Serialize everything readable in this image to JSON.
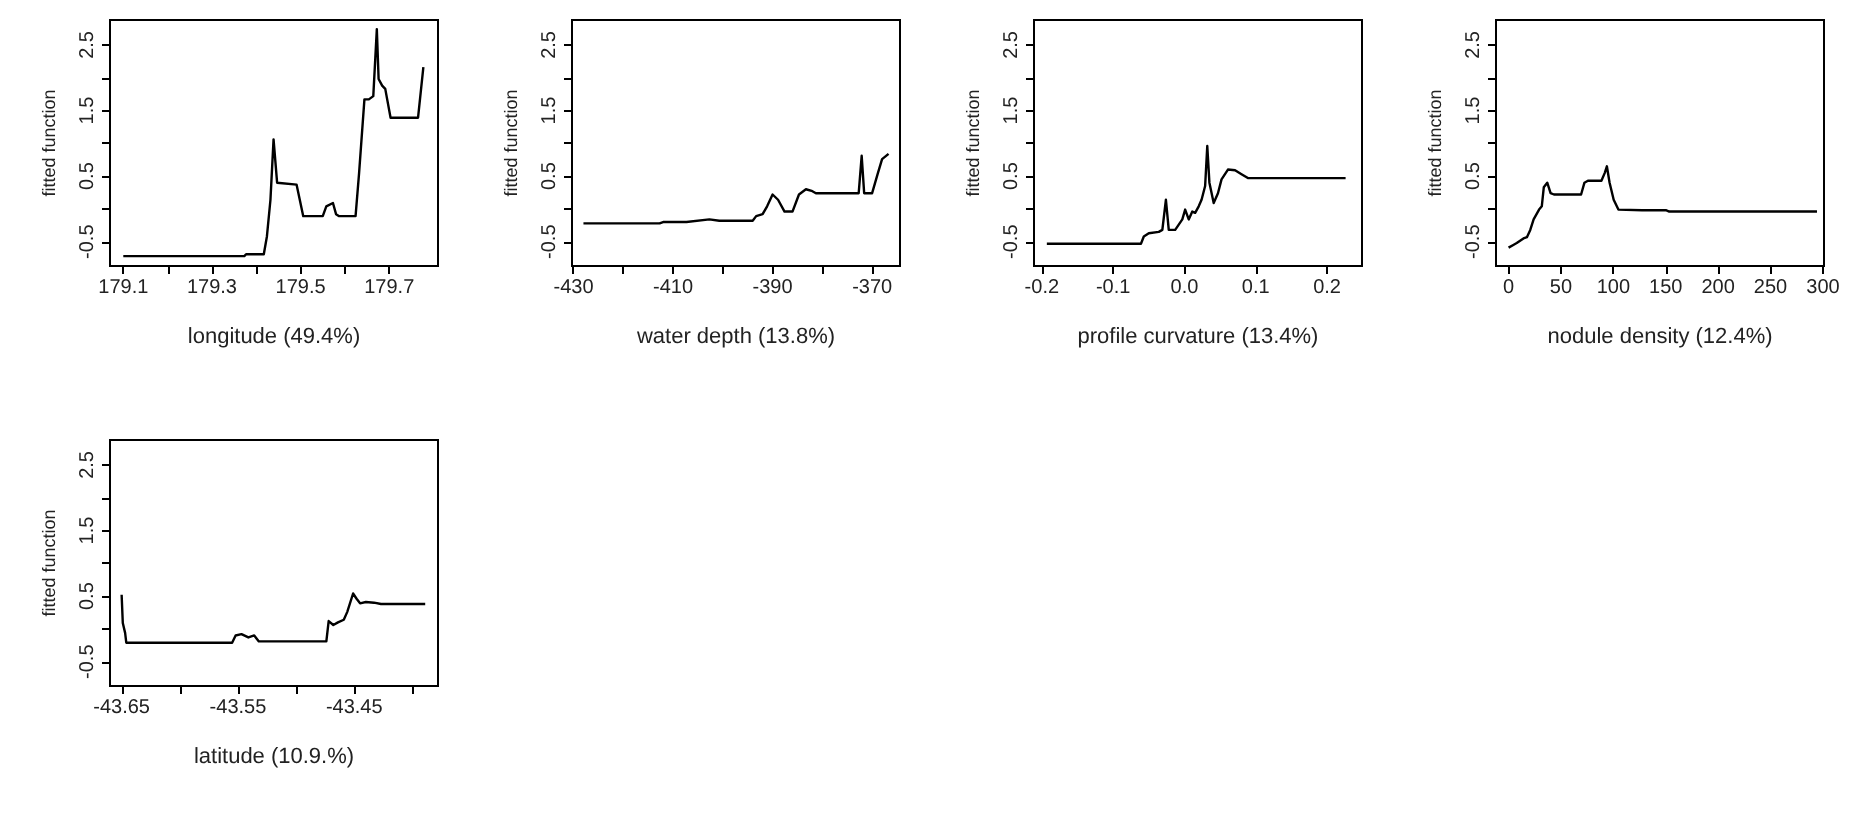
{
  "chart_data": [
    {
      "type": "line",
      "xlabel": "longitude (49.4%)",
      "ylabel": "fitted function",
      "color": "#000000",
      "marker": "none",
      "xlim": [
        179.07,
        179.81
      ],
      "ylim": [
        -0.87,
        2.88
      ],
      "xticks": [
        179.1,
        {
          "value": 179.2,
          "label": null
        },
        179.3,
        {
          "value": 179.4,
          "label": null
        },
        179.5,
        {
          "value": 179.6,
          "label": null
        },
        179.7
      ],
      "yticks": [
        -0.5,
        {
          "value": 0,
          "label": null
        },
        0.5,
        {
          "value": 1,
          "label": null
        },
        1.5,
        {
          "value": 2,
          "label": null
        },
        2.5
      ],
      "x": [
        179.1,
        179.373,
        179.377,
        179.417,
        179.424,
        179.432,
        179.439,
        179.444,
        179.447,
        179.491,
        179.506,
        179.55,
        179.558,
        179.573,
        179.58,
        179.587,
        179.624,
        179.632,
        179.644,
        179.654,
        179.664,
        179.672,
        179.676,
        179.684,
        179.691,
        179.703,
        179.765,
        179.777
      ],
      "values": [
        -0.72,
        -0.72,
        -0.69,
        -0.69,
        -0.42,
        0.14,
        1.06,
        0.65,
        0.4,
        0.37,
        -0.11,
        -0.11,
        0.04,
        0.09,
        -0.08,
        -0.11,
        -0.11,
        0.55,
        1.67,
        1.67,
        1.72,
        2.74,
        1.98,
        1.88,
        1.83,
        1.39,
        1.39,
        2.16
      ]
    },
    {
      "type": "line",
      "xlabel": "water depth (13.8%)",
      "ylabel": "fitted function",
      "color": "#000000",
      "marker": "none",
      "xlim": [
        -430.3,
        -364.4
      ],
      "ylim": [
        -0.87,
        2.88
      ],
      "xticks": [
        -430,
        {
          "value": -420,
          "label": null
        },
        -410,
        {
          "value": -400,
          "label": null
        },
        -390,
        {
          "value": -380,
          "label": null
        },
        -370
      ],
      "yticks": [
        -0.5,
        {
          "value": 0,
          "label": null
        },
        0.5,
        {
          "value": 1,
          "label": null
        },
        1.5,
        {
          "value": 2,
          "label": null
        },
        2.5
      ],
      "x": [
        -428,
        -412.7,
        -412,
        -407.3,
        -402.7,
        -400.7,
        -394,
        -393.3,
        -392,
        -391.1,
        -390,
        -388.9,
        -387.6,
        -386,
        -384.7,
        -383.3,
        -382,
        -381.3,
        -372.7,
        -372.1,
        -371.6,
        -370,
        -368.9,
        -368,
        -366.7
      ],
      "values": [
        -0.22,
        -0.22,
        -0.2,
        -0.2,
        -0.16,
        -0.18,
        -0.18,
        -0.11,
        -0.08,
        0.04,
        0.22,
        0.14,
        -0.04,
        -0.04,
        0.22,
        0.3,
        0.27,
        0.24,
        0.24,
        0.81,
        0.24,
        0.24,
        0.53,
        0.76,
        0.84
      ]
    },
    {
      "type": "line",
      "xlabel": "profile curvature (13.4%)",
      "ylabel": "fitted function",
      "color": "#000000",
      "marker": "none",
      "xlim": [
        -0.211,
        0.249
      ],
      "ylim": [
        -0.87,
        2.88
      ],
      "xticks": [
        -0.2,
        -0.1,
        {
          "value": 0,
          "label": "0.0"
        },
        0.1,
        0.2
      ],
      "yticks": [
        -0.5,
        {
          "value": 0,
          "label": null
        },
        0.5,
        {
          "value": 1,
          "label": null
        },
        1.5,
        {
          "value": 2,
          "label": null
        },
        2.5
      ],
      "x": [
        -0.193,
        -0.061,
        -0.057,
        -0.05,
        -0.036,
        -0.031,
        -0.026,
        -0.022,
        -0.013,
        -0.003,
        0.001,
        0.006,
        0.011,
        0.015,
        0.02,
        0.024,
        0.029,
        0.032,
        0.035,
        0.041,
        0.047,
        0.052,
        0.061,
        0.071,
        0.08,
        0.089,
        0.226
      ],
      "values": [
        -0.53,
        -0.53,
        -0.42,
        -0.37,
        -0.35,
        -0.32,
        0.14,
        -0.32,
        -0.32,
        -0.16,
        -0.01,
        -0.16,
        -0.04,
        -0.06,
        0.04,
        0.14,
        0.35,
        0.96,
        0.4,
        0.09,
        0.24,
        0.45,
        0.6,
        0.59,
        0.53,
        0.47,
        0.47
      ]
    },
    {
      "type": "line",
      "xlabel": "nodule density (12.4%)",
      "ylabel": "fitted function",
      "color": "#000000",
      "marker": "none",
      "xlim": [
        -12,
        301
      ],
      "ylim": [
        -0.87,
        2.88
      ],
      "xticks": [
        0,
        50,
        100,
        150,
        200,
        250,
        300
      ],
      "yticks": [
        -0.5,
        {
          "value": 0,
          "label": null
        },
        0.5,
        {
          "value": 1,
          "label": null
        },
        1.5,
        {
          "value": 2,
          "label": null
        },
        2.5
      ],
      "x": [
        0,
        4.5,
        7.8,
        14.2,
        17.5,
        20.7,
        23.9,
        29.1,
        31.7,
        33.6,
        36.9,
        40.1,
        43.3,
        69.2,
        72.4,
        75.7,
        88.6,
        91.8,
        93.8,
        96.4,
        100.3,
        104.8,
        127.4,
        150.1,
        153.3,
        294.3
      ],
      "values": [
        -0.59,
        -0.55,
        -0.52,
        -0.45,
        -0.43,
        -0.32,
        -0.16,
        -0.01,
        0.04,
        0.33,
        0.4,
        0.24,
        0.22,
        0.22,
        0.4,
        0.43,
        0.43,
        0.55,
        0.65,
        0.4,
        0.14,
        -0.01,
        -0.02,
        -0.02,
        -0.04,
        -0.04
      ]
    },
    {
      "type": "line",
      "xlabel": "latitude (10.9.%)",
      "ylabel": "fitted function",
      "color": "#000000",
      "marker": "none",
      "xlim": [
        -43.66,
        -43.378
      ],
      "ylim": [
        -0.87,
        2.88
      ],
      "xticks": [
        -43.65,
        {
          "value": -43.6,
          "label": null
        },
        -43.55,
        {
          "value": -43.5,
          "label": null
        },
        -43.45,
        {
          "value": -43.4,
          "label": null
        }
      ],
      "yticks": [
        -0.5,
        {
          "value": 0,
          "label": null
        },
        0.5,
        {
          "value": 1,
          "label": null
        },
        1.5,
        {
          "value": 2,
          "label": null
        },
        2.5
      ],
      "x": [
        -43.65,
        -43.649,
        -43.647,
        -43.646,
        -43.555,
        -43.552,
        -43.547,
        -43.541,
        -43.536,
        -43.532,
        -43.474,
        -43.472,
        -43.468,
        -43.464,
        -43.459,
        -43.456,
        -43.451,
        -43.448,
        -43.445,
        -43.44,
        -43.433,
        -43.427,
        -43.389
      ],
      "values": [
        0.52,
        0.09,
        -0.06,
        -0.21,
        -0.21,
        -0.1,
        -0.08,
        -0.13,
        -0.1,
        -0.19,
        -0.19,
        0.12,
        0.06,
        0.1,
        0.14,
        0.26,
        0.54,
        0.46,
        0.39,
        0.41,
        0.4,
        0.38,
        0.38
      ]
    }
  ]
}
